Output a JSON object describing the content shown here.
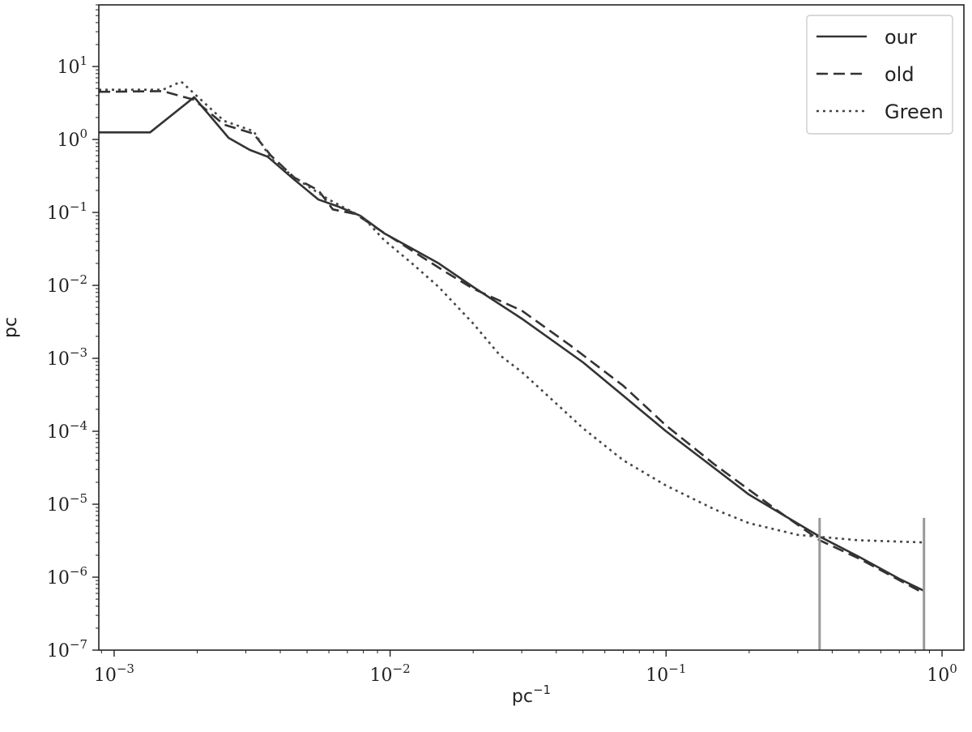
{
  "chart_data": {
    "type": "line",
    "xscale": "log",
    "yscale": "log",
    "xlabel": "pc",
    "xlabel_sup": "−1",
    "ylabel": "pc",
    "xlim": [
      0.00088,
      1.2
    ],
    "ylim": [
      1e-07,
      70
    ],
    "x_ticks": [
      {
        "value": 0.001,
        "base": "10",
        "exp": "−3"
      },
      {
        "value": 0.01,
        "base": "10",
        "exp": "−2"
      },
      {
        "value": 0.1,
        "base": "10",
        "exp": "−1"
      },
      {
        "value": 1,
        "base": "10",
        "exp": "0"
      }
    ],
    "y_ticks": [
      {
        "value": 1e-07,
        "base": "10",
        "exp": "−7"
      },
      {
        "value": 1e-06,
        "base": "10",
        "exp": "−6"
      },
      {
        "value": 1e-05,
        "base": "10",
        "exp": "−5"
      },
      {
        "value": 0.0001,
        "base": "10",
        "exp": "−4"
      },
      {
        "value": 0.001,
        "base": "10",
        "exp": "−3"
      },
      {
        "value": 0.01,
        "base": "10",
        "exp": "−2"
      },
      {
        "value": 0.1,
        "base": "10",
        "exp": "−1"
      },
      {
        "value": 1,
        "base": "10",
        "exp": "0"
      },
      {
        "value": 10,
        "base": "10",
        "exp": "1"
      }
    ],
    "legend_position": "top-right",
    "grid": false,
    "series": [
      {
        "name": "our",
        "style": "solid",
        "color": "#333333",
        "x": [
          0.00088,
          0.00135,
          0.00195,
          0.0026,
          0.0031,
          0.0036,
          0.0045,
          0.0055,
          0.0065,
          0.0078,
          0.0095,
          0.012,
          0.015,
          0.02,
          0.03,
          0.05,
          0.1,
          0.2,
          0.36,
          0.5,
          0.7,
          0.86
        ],
        "y": [
          1.25,
          1.25,
          3.8,
          1.05,
          0.72,
          0.58,
          0.28,
          0.15,
          0.12,
          0.09,
          0.052,
          0.032,
          0.02,
          0.0095,
          0.0035,
          0.00088,
          0.0001,
          1.35e-05,
          3.6e-06,
          1.9e-06,
          9.5e-07,
          6.5e-07
        ]
      },
      {
        "name": "old",
        "style": "dashed",
        "color": "#333333",
        "x": [
          0.00088,
          0.0015,
          0.00195,
          0.0025,
          0.0032,
          0.0037,
          0.0045,
          0.0055,
          0.0062,
          0.0075,
          0.009,
          0.012,
          0.016,
          0.02,
          0.03,
          0.045,
          0.07,
          0.1,
          0.15,
          0.25,
          0.36,
          0.5,
          0.86
        ],
        "y": [
          4.5,
          4.6,
          3.5,
          1.6,
          1.2,
          0.6,
          0.3,
          0.2,
          0.11,
          0.095,
          0.06,
          0.03,
          0.015,
          0.009,
          0.0045,
          0.0015,
          0.00042,
          0.00012,
          3.5e-05,
          8.5e-06,
          3.2e-06,
          1.8e-06,
          6e-07
        ]
      },
      {
        "name": "Green",
        "style": "dotted",
        "color": "#444444",
        "x": [
          0.00088,
          0.0015,
          0.00175,
          0.0025,
          0.0032,
          0.0037,
          0.0045,
          0.006,
          0.008,
          0.0095,
          0.012,
          0.015,
          0.02,
          0.025,
          0.03,
          0.04,
          0.05,
          0.07,
          0.1,
          0.15,
          0.2,
          0.3,
          0.5,
          0.86
        ],
        "y": [
          4.8,
          4.8,
          6.2,
          1.8,
          1.3,
          0.55,
          0.3,
          0.15,
          0.085,
          0.042,
          0.02,
          0.0095,
          0.003,
          0.0011,
          0.00065,
          0.00024,
          0.00011,
          4e-05,
          1.8e-05,
          8.5e-06,
          5.5e-06,
          3.8e-06,
          3.2e-06,
          3e-06
        ]
      }
    ]
  }
}
